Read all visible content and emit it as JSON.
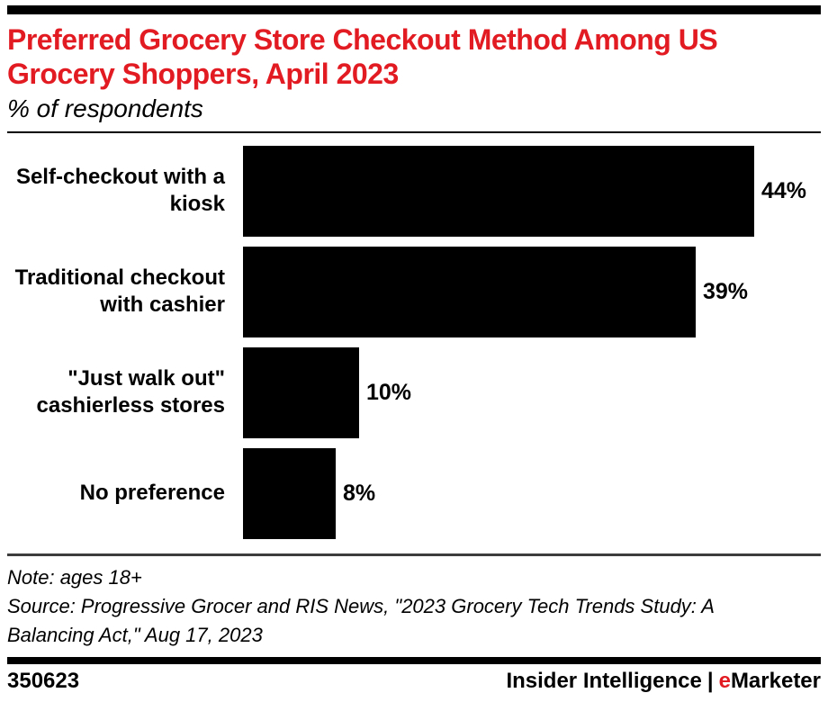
{
  "page": {
    "title_lines": "Preferred Grocery Store Checkout Method Among US\nGrocery Shoppers, April 2023",
    "subtitle": "% of respondents"
  },
  "chart_data": {
    "type": "bar",
    "orientation": "horizontal",
    "title": "Preferred Grocery Store Checkout Method Among US Grocery Shoppers, April 2023",
    "subtitle": "% of respondents",
    "categories": [
      "Self-checkout with a kiosk",
      "Traditional checkout with cashier",
      "\"Just walk out\" cashierless stores",
      "No preference"
    ],
    "category_lines": [
      "Self-checkout with a\nkiosk",
      "Traditional checkout\nwith cashier",
      "\"Just walk out\"\ncashierless stores",
      "No preference"
    ],
    "values": [
      44,
      39,
      10,
      8
    ],
    "value_labels": [
      "44%",
      "39%",
      "10%",
      "8%"
    ],
    "unit": "% of respondents",
    "bar_color": "#000000",
    "grid": false,
    "legend": false,
    "value_label_position": "right-of-bar",
    "xlim": [
      0,
      48
    ]
  },
  "notes": {
    "note": "Note: ages 18+",
    "source": "Source: Progressive Grocer and RIS News, \"2023 Grocery Tech Trends Study: A\nBalancing Act,\" Aug 17, 2023"
  },
  "footer": {
    "chart_id": "350623",
    "brand_left": "Insider Intelligence",
    "separator": "|",
    "brand_e": "e",
    "brand_rest": "Marketer"
  },
  "colors": {
    "accent_red": "#e21b23",
    "bar": "#000000",
    "notes_divider": "#3c3c3c"
  }
}
